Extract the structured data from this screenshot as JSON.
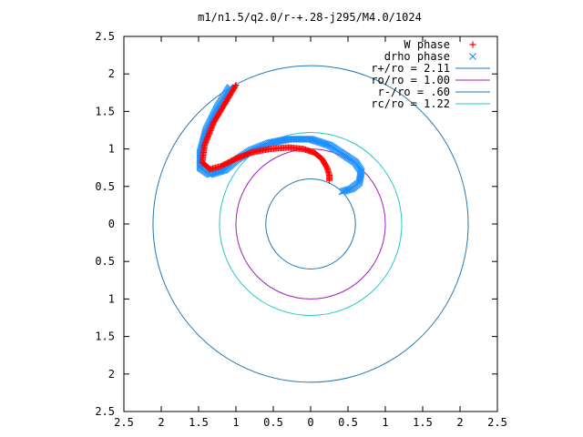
{
  "chart_data": {
    "type": "scatter",
    "title": "m1/n1.5/q2.0/r-+.28-j295/M4.0/1024",
    "xlabel": "",
    "ylabel": "",
    "xlim": [
      -2.5,
      2.5
    ],
    "ylim": [
      -2.5,
      2.5
    ],
    "grid": false,
    "legend_position": "top-right",
    "x_tick_labels": [
      "2.5",
      "2",
      "1.5",
      "1",
      "0.5",
      "0",
      "0.5",
      "1",
      "1.5",
      "2",
      "2.5"
    ],
    "y_tick_labels": [
      "2.5",
      "2",
      "1.5",
      "1",
      "0.5",
      "0",
      "0.5",
      "1",
      "1.5",
      "2",
      "2.5"
    ],
    "circles": [
      {
        "name": "r+/ro = 2.11",
        "radius": 2.11,
        "color": "#1f77b4"
      },
      {
        "name": "ro/ro = 1.00",
        "radius": 1.0,
        "color": "#a020c0"
      },
      {
        "name": "r-/ro = .60",
        "radius": 0.6,
        "color": "#1f77b4"
      },
      {
        "name": "rc/ro = 1.22",
        "radius": 1.22,
        "color": "#20c8c8"
      }
    ],
    "series": [
      {
        "name": "W phase",
        "marker": "plus",
        "color": "#ff0000",
        "points": [
          [
            -1.0,
            1.85
          ],
          [
            -1.15,
            1.6
          ],
          [
            -1.3,
            1.35
          ],
          [
            -1.42,
            1.05
          ],
          [
            -1.45,
            0.82
          ],
          [
            -1.35,
            0.73
          ],
          [
            -1.2,
            0.77
          ],
          [
            -1.0,
            0.87
          ],
          [
            -0.8,
            0.95
          ],
          [
            -0.55,
            1.0
          ],
          [
            -0.3,
            1.02
          ],
          [
            -0.1,
            1.0
          ],
          [
            0.05,
            0.95
          ],
          [
            0.15,
            0.87
          ],
          [
            0.22,
            0.75
          ],
          [
            0.25,
            0.65
          ],
          [
            0.25,
            0.58
          ]
        ]
      },
      {
        "name": "drho phase",
        "marker": "x",
        "color": "#1e90ff",
        "points": [
          [
            -1.08,
            1.82
          ],
          [
            -1.25,
            1.55
          ],
          [
            -1.4,
            1.25
          ],
          [
            -1.48,
            0.95
          ],
          [
            -1.48,
            0.75
          ],
          [
            -1.35,
            0.66
          ],
          [
            -1.15,
            0.72
          ],
          [
            -1.0,
            0.85
          ],
          [
            -0.8,
            0.98
          ],
          [
            -0.55,
            1.08
          ],
          [
            -0.3,
            1.13
          ],
          [
            0.0,
            1.13
          ],
          [
            0.25,
            1.05
          ],
          [
            0.45,
            0.92
          ],
          [
            0.6,
            0.82
          ],
          [
            0.68,
            0.7
          ],
          [
            0.65,
            0.55
          ],
          [
            0.55,
            0.47
          ],
          [
            0.42,
            0.43
          ]
        ]
      }
    ]
  }
}
